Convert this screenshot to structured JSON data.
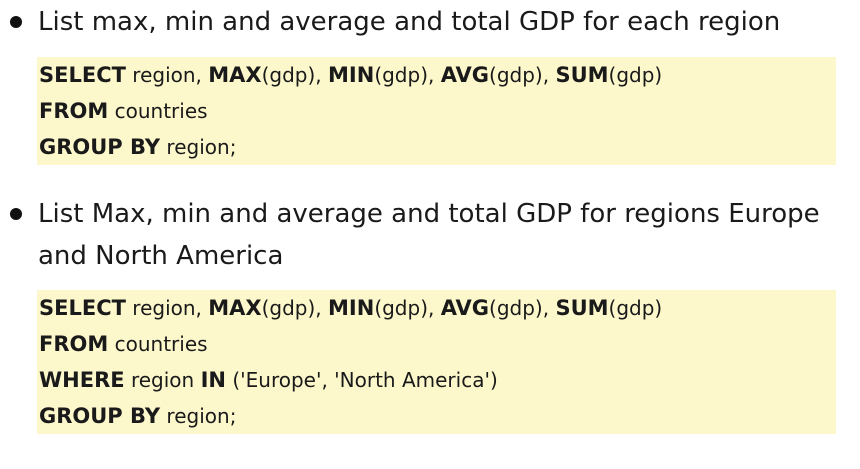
{
  "items": [
    {
      "bullet_text": "List max, min and average and total GDP for each region",
      "code": [
        [
          {
            "t": "SELECT",
            "kw": true
          },
          {
            "t": " region, ",
            "kw": false
          },
          {
            "t": "MAX",
            "kw": true
          },
          {
            "t": "(gdp), ",
            "kw": false
          },
          {
            "t": "MIN",
            "kw": true
          },
          {
            "t": "(gdp), ",
            "kw": false
          },
          {
            "t": "AVG",
            "kw": true
          },
          {
            "t": "(gdp), ",
            "kw": false
          },
          {
            "t": "SUM",
            "kw": true
          },
          {
            "t": "(gdp)",
            "kw": false
          }
        ],
        [
          {
            "t": "FROM",
            "kw": true
          },
          {
            "t": " countries",
            "kw": false
          }
        ],
        [
          {
            "t": "GROUP BY",
            "kw": true
          },
          {
            "t": " region;",
            "kw": false
          }
        ]
      ]
    },
    {
      "bullet_text_line1": "List Max, min and average and total GDP for regions Europe",
      "bullet_text_line2": "and North America",
      "code": [
        [
          {
            "t": "SELECT",
            "kw": true
          },
          {
            "t": " region, ",
            "kw": false
          },
          {
            "t": "MAX",
            "kw": true
          },
          {
            "t": "(gdp), ",
            "kw": false
          },
          {
            "t": "MIN",
            "kw": true
          },
          {
            "t": "(gdp), ",
            "kw": false
          },
          {
            "t": "AVG",
            "kw": true
          },
          {
            "t": "(gdp), ",
            "kw": false
          },
          {
            "t": "SUM",
            "kw": true
          },
          {
            "t": "(gdp)",
            "kw": false
          }
        ],
        [
          {
            "t": "FROM",
            "kw": true
          },
          {
            "t": " countries",
            "kw": false
          }
        ],
        [
          {
            "t": "WHERE",
            "kw": true
          },
          {
            "t": " region ",
            "kw": false
          },
          {
            "t": "IN",
            "kw": true
          },
          {
            "t": " ('Europe', 'North America')",
            "kw": false
          }
        ],
        [
          {
            "t": "GROUP BY",
            "kw": true
          },
          {
            "t": " region;",
            "kw": false
          }
        ]
      ]
    }
  ],
  "colors": {
    "code_background": "#fdf8cc",
    "text": "#1a1a1a"
  }
}
